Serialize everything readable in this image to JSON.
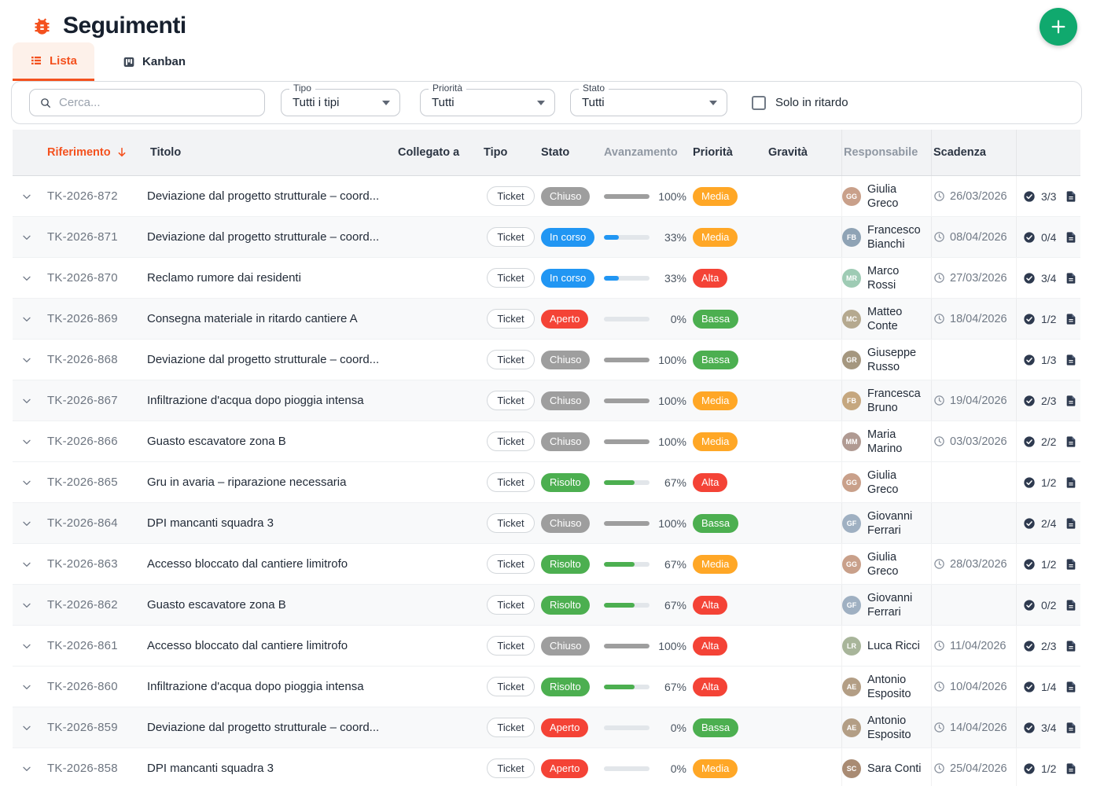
{
  "app": {
    "title": "Seguimenti",
    "icon": "bug-icon"
  },
  "fab": {
    "icon": "plus-icon"
  },
  "tabs": {
    "lista": "Lista",
    "kanban": "Kanban",
    "active": "Lista"
  },
  "filters": {
    "search_placeholder": "Cerca...",
    "tipo": {
      "label": "Tipo",
      "value": "Tutti i tipi"
    },
    "priorita": {
      "label": "Priorità",
      "value": "Tutti"
    },
    "stato": {
      "label": "Stato",
      "value": "Tutti"
    },
    "solo_in_ritardo": {
      "label": "Solo in ritardo",
      "checked": false
    }
  },
  "table": {
    "headers": {
      "riferimento": "Riferimento",
      "titolo": "Titolo",
      "collegato_a": "Collegato a",
      "tipo": "Tipo",
      "stato": "Stato",
      "avanzamento": "Avanzamento",
      "priorita": "Priorità",
      "gravita": "Gravità",
      "responsabile": "Responsabile",
      "scadenza": "Scadenza"
    },
    "sort": {
      "column": "Riferimento",
      "direction": "desc"
    },
    "rows": [
      {
        "ref": "TK-2026-872",
        "title": "Deviazione dal progetto strutturale – coord...",
        "tipo": "Ticket",
        "stato": "Chiuso",
        "avanzamento": 100,
        "priorita": "Media",
        "gravita": "",
        "responsabile": "Giulia Greco",
        "initials": "GG",
        "avatar_color": "#c9a08a",
        "scadenza": "26/03/2026",
        "checklist": "3/3",
        "documenti": "1",
        "shaded": false
      },
      {
        "ref": "TK-2026-871",
        "title": "Deviazione dal progetto strutturale – coord...",
        "tipo": "Ticket",
        "stato": "In corso",
        "avanzamento": 33,
        "priorita": "Media",
        "gravita": "",
        "responsabile": "Francesco Bianchi",
        "initials": "FB",
        "avatar_color": "#8fa3b5",
        "scadenza": "08/04/2026",
        "checklist": "0/4",
        "documenti": "2",
        "shaded": true
      },
      {
        "ref": "TK-2026-870",
        "title": "Reclamo rumore dai residenti",
        "tipo": "Ticket",
        "stato": "In corso",
        "avanzamento": 33,
        "priorita": "Alta",
        "gravita": "",
        "responsabile": "Marco Rossi",
        "initials": "MR",
        "avatar_color": "#9ecbb4",
        "scadenza": "27/03/2026",
        "checklist": "3/4",
        "documenti": "1",
        "shaded": false
      },
      {
        "ref": "TK-2026-869",
        "title": "Consegna materiale in ritardo cantiere A",
        "tipo": "Ticket",
        "stato": "Aperto",
        "avanzamento": 0,
        "priorita": "Bassa",
        "gravita": "",
        "responsabile": "Matteo Conte",
        "initials": "MC",
        "avatar_color": "#b5a98f",
        "scadenza": "18/04/2026",
        "checklist": "1/2",
        "documenti": "1",
        "shaded": true
      },
      {
        "ref": "TK-2026-868",
        "title": "Deviazione dal progetto strutturale – coord...",
        "tipo": "Ticket",
        "stato": "Chiuso",
        "avanzamento": 100,
        "priorita": "Bassa",
        "gravita": "",
        "responsabile": "Giuseppe Russo",
        "initials": "GR",
        "avatar_color": "#a5977f",
        "scadenza": "",
        "checklist": "1/3",
        "documenti": "2",
        "shaded": false
      },
      {
        "ref": "TK-2026-867",
        "title": "Infiltrazione d'acqua dopo pioggia intensa",
        "tipo": "Ticket",
        "stato": "Chiuso",
        "avanzamento": 100,
        "priorita": "Media",
        "gravita": "",
        "responsabile": "Francesca Bruno",
        "initials": "FB",
        "avatar_color": "#c5a77f",
        "scadenza": "19/04/2026",
        "checklist": "2/3",
        "documenti": "2",
        "shaded": true
      },
      {
        "ref": "TK-2026-866",
        "title": "Guasto escavatore zona B",
        "tipo": "Ticket",
        "stato": "Chiuso",
        "avanzamento": 100,
        "priorita": "Media",
        "gravita": "",
        "responsabile": "Maria Marino",
        "initials": "MM",
        "avatar_color": "#b09a92",
        "scadenza": "03/03/2026",
        "checklist": "2/2",
        "documenti": "1",
        "shaded": false
      },
      {
        "ref": "TK-2026-865",
        "title": "Gru in avaria – riparazione necessaria",
        "tipo": "Ticket",
        "stato": "Risolto",
        "avanzamento": 67,
        "priorita": "Alta",
        "gravita": "",
        "responsabile": "Giulia Greco",
        "initials": "GG",
        "avatar_color": "#c9a08a",
        "scadenza": "",
        "checklist": "1/2",
        "documenti": "2",
        "shaded": false
      },
      {
        "ref": "TK-2026-864",
        "title": "DPI mancanti squadra 3",
        "tipo": "Ticket",
        "stato": "Chiuso",
        "avanzamento": 100,
        "priorita": "Bassa",
        "gravita": "",
        "responsabile": "Giovanni Ferrari",
        "initials": "GF",
        "avatar_color": "#9fb0c2",
        "scadenza": "",
        "checklist": "2/4",
        "documenti": "2",
        "shaded": true
      },
      {
        "ref": "TK-2026-863",
        "title": "Accesso bloccato dal cantiere limitrofo",
        "tipo": "Ticket",
        "stato": "Risolto",
        "avanzamento": 67,
        "priorita": "Media",
        "gravita": "",
        "responsabile": "Giulia Greco",
        "initials": "GG",
        "avatar_color": "#c9a08a",
        "scadenza": "28/03/2026",
        "checklist": "1/2",
        "documenti": "1",
        "shaded": false
      },
      {
        "ref": "TK-2026-862",
        "title": "Guasto escavatore zona B",
        "tipo": "Ticket",
        "stato": "Risolto",
        "avanzamento": 67,
        "priorita": "Alta",
        "gravita": "",
        "responsabile": "Giovanni Ferrari",
        "initials": "GF",
        "avatar_color": "#9fb0c2",
        "scadenza": "",
        "checklist": "0/2",
        "documenti": "2",
        "shaded": true
      },
      {
        "ref": "TK-2026-861",
        "title": "Accesso bloccato dal cantiere limitrofo",
        "tipo": "Ticket",
        "stato": "Chiuso",
        "avanzamento": 100,
        "priorita": "Alta",
        "gravita": "",
        "responsabile": "Luca Ricci",
        "initials": "LR",
        "avatar_color": "#a8b59a",
        "scadenza": "11/04/2026",
        "checklist": "2/3",
        "documenti": "1",
        "shaded": false
      },
      {
        "ref": "TK-2026-860",
        "title": "Infiltrazione d'acqua dopo pioggia intensa",
        "tipo": "Ticket",
        "stato": "Risolto",
        "avanzamento": 67,
        "priorita": "Alta",
        "gravita": "",
        "responsabile": "Antonio Esposito",
        "initials": "AE",
        "avatar_color": "#b39e85",
        "scadenza": "10/04/2026",
        "checklist": "1/4",
        "documenti": "2",
        "shaded": false
      },
      {
        "ref": "TK-2026-859",
        "title": "Deviazione dal progetto strutturale – coord...",
        "tipo": "Ticket",
        "stato": "Aperto",
        "avanzamento": 0,
        "priorita": "Bassa",
        "gravita": "",
        "responsabile": "Antonio Esposito",
        "initials": "AE",
        "avatar_color": "#b39e85",
        "scadenza": "14/04/2026",
        "checklist": "3/4",
        "documenti": "2",
        "shaded": true
      },
      {
        "ref": "TK-2026-858",
        "title": "DPI mancanti squadra 3",
        "tipo": "Ticket",
        "stato": "Aperto",
        "avanzamento": 0,
        "priorita": "Media",
        "gravita": "",
        "responsabile": "Sara Conti",
        "initials": "SC",
        "avatar_color": "#a98b73",
        "scadenza": "25/04/2026",
        "checklist": "1/2",
        "documenti": "2",
        "shaded": false
      }
    ]
  },
  "colors": {
    "accent": "#f4511e",
    "fab": "#10a96e",
    "status": {
      "Chiuso": "#9e9e9e",
      "In corso": "#2196f3",
      "Aperto": "#f44336",
      "Risolto": "#4caf50"
    },
    "priority": {
      "Alta": "#f44336",
      "Media": "#ffa726",
      "Bassa": "#4caf50"
    },
    "progress_track": "#e2e6ea"
  }
}
